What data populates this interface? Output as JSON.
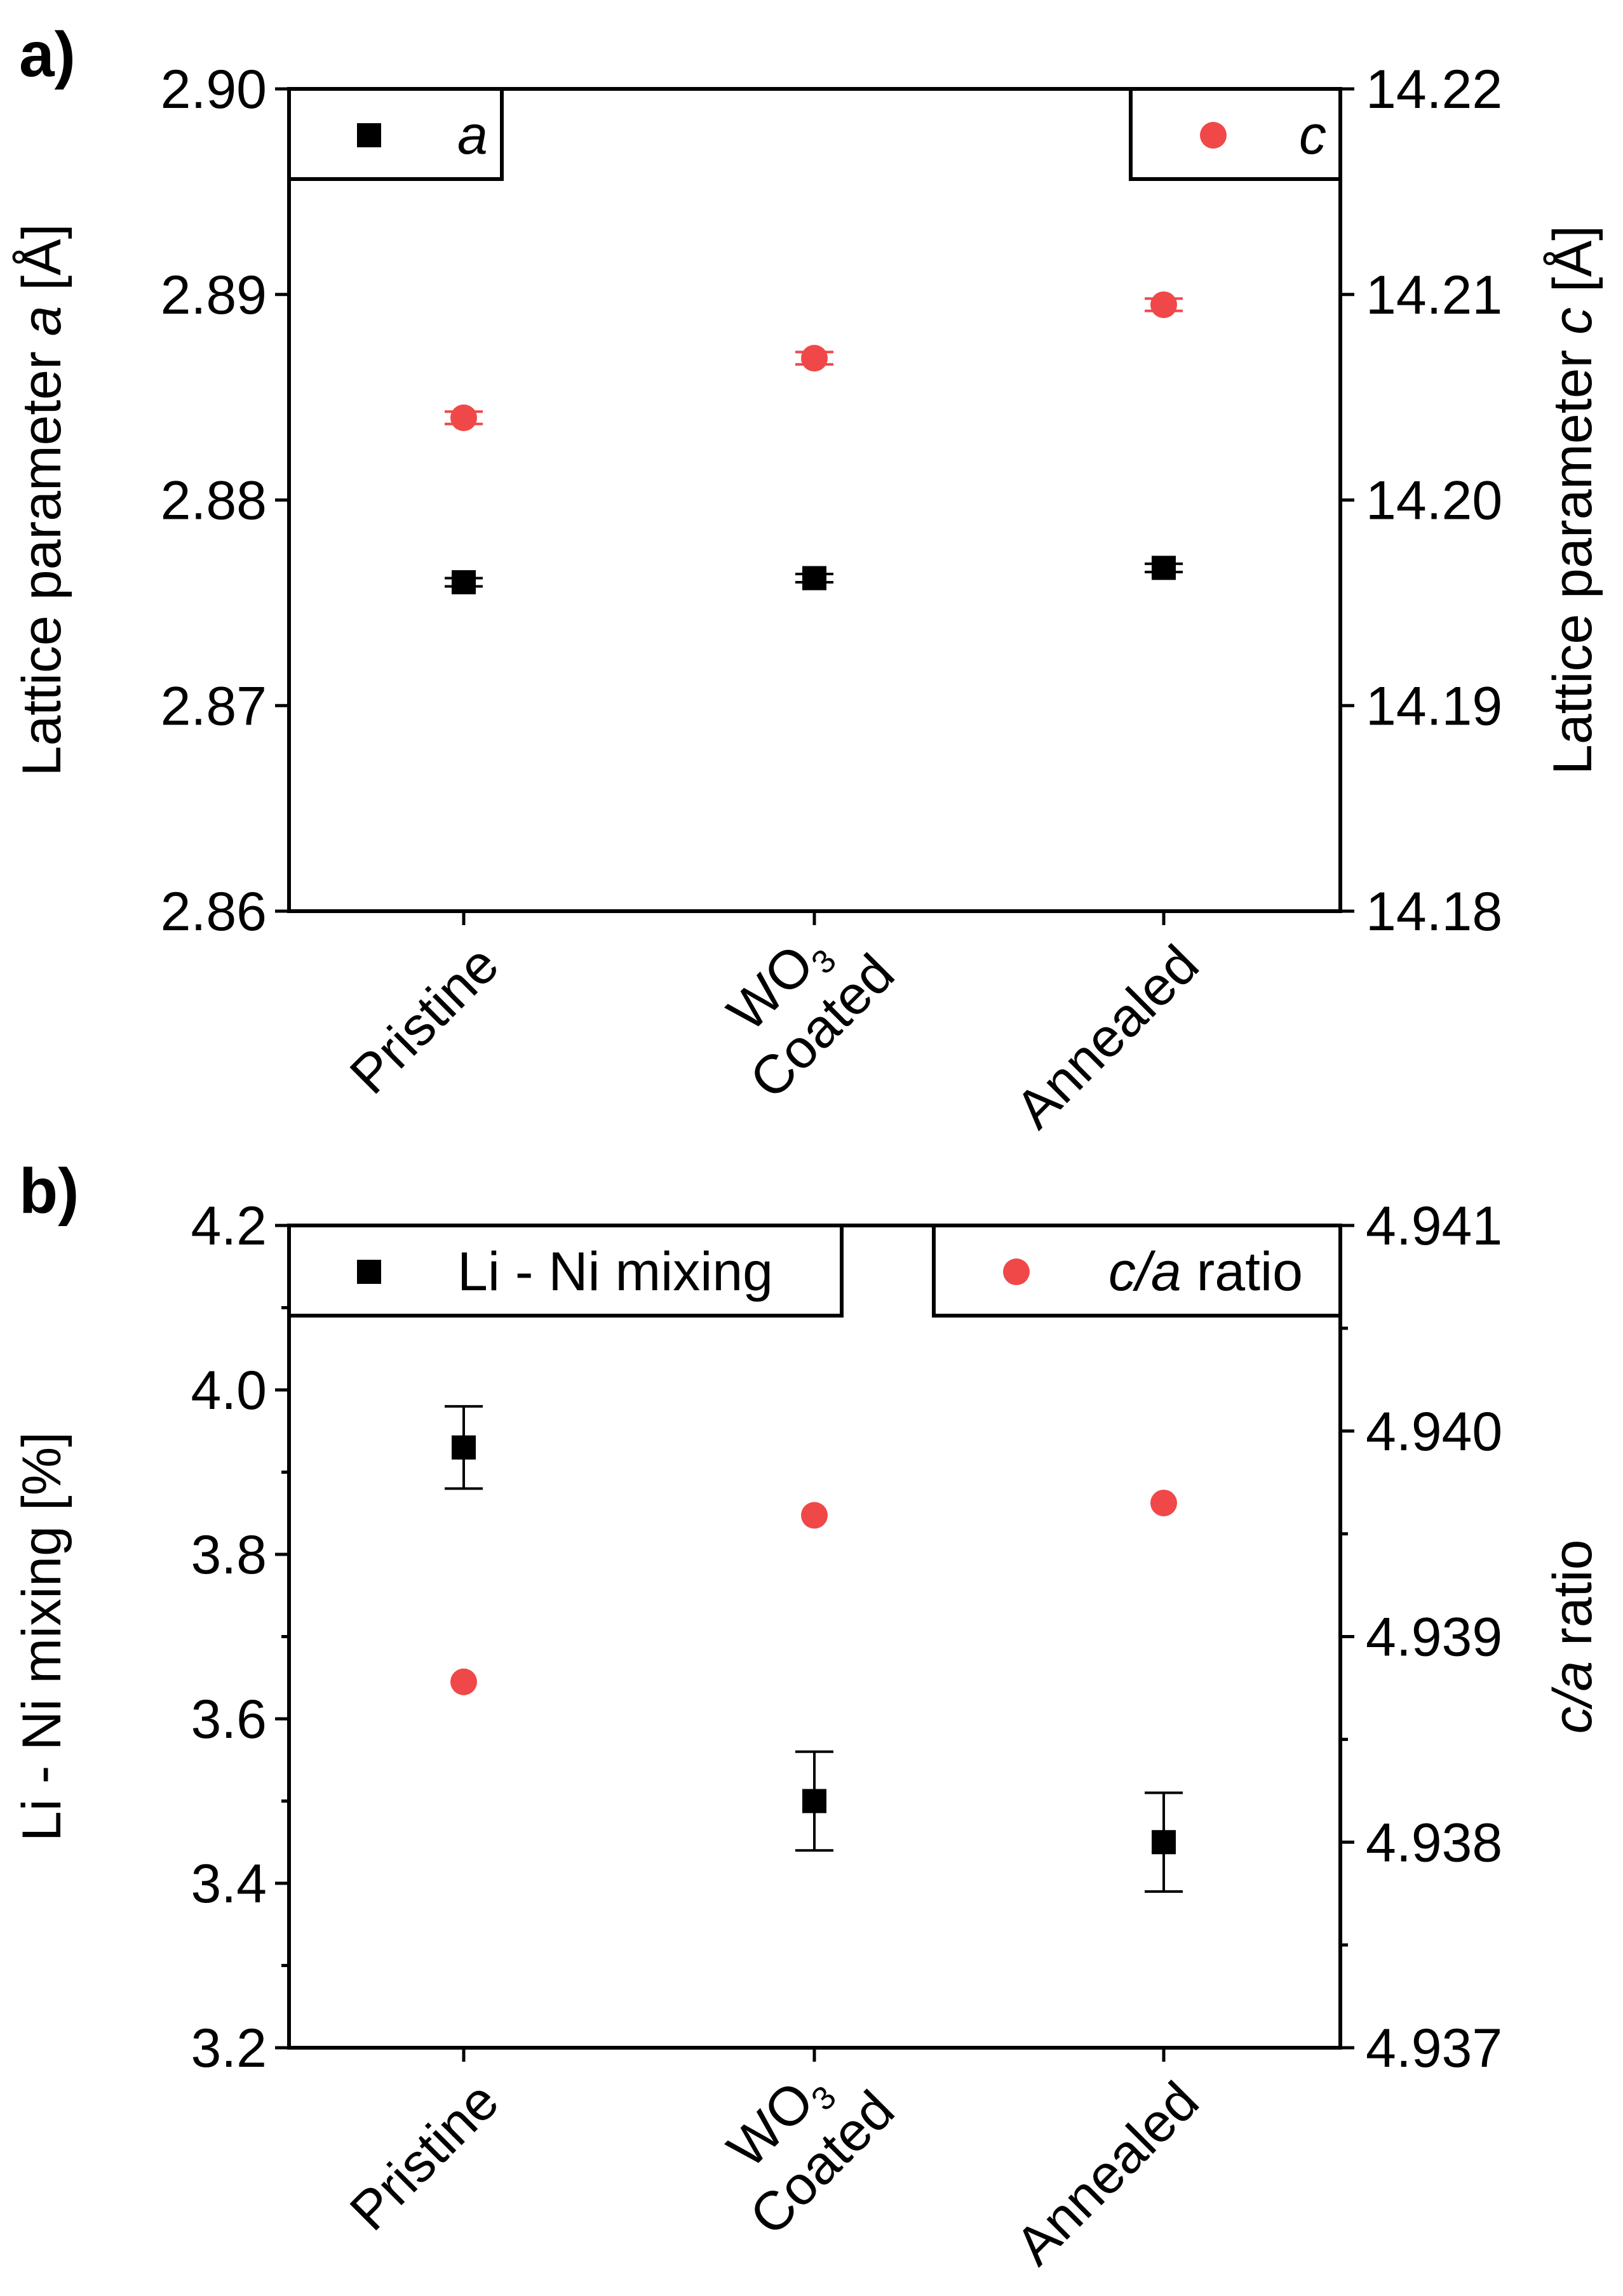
{
  "colors": {
    "series_a": "#000000",
    "series_c": "#f04848"
  },
  "chart_data": [
    {
      "panel": "a)",
      "type": "scatter",
      "categories": [
        "Pristine",
        "WO3 Coated",
        "Annealed"
      ],
      "category_lines": [
        [
          "Pristine"
        ],
        [
          "WO",
          "3",
          "Coated"
        ],
        [
          "Annealed"
        ]
      ],
      "left_axis": {
        "label_pre": "Lattice parameter ",
        "label_italic": "a",
        "label_post": "  [Å]",
        "range": [
          2.86,
          2.9
        ],
        "ticks": [
          "2.86",
          "2.87",
          "2.88",
          "2.89",
          "2.90"
        ]
      },
      "right_axis": {
        "label_pre": "Lattice parameter ",
        "label_italic": "c",
        "label_post": "  [Å]",
        "range": [
          14.18,
          14.22
        ],
        "ticks": [
          "14.18",
          "14.19",
          "14.20",
          "14.21",
          "14.22"
        ]
      },
      "series": [
        {
          "name": "a",
          "italic": true,
          "axis": "left",
          "marker": "square",
          "color": "#000000",
          "values": [
            2.876,
            2.8762,
            2.8767
          ],
          "errors": [
            0.0002,
            0.0002,
            0.0002
          ]
        },
        {
          "name": "c",
          "italic": true,
          "axis": "right",
          "marker": "circle",
          "color": "#f04848",
          "values": [
            14.204,
            14.2069,
            14.2095
          ],
          "errors": [
            0.0003,
            0.0003,
            0.0003
          ]
        }
      ],
      "legend": [
        "top-left",
        "top-right"
      ]
    },
    {
      "panel": "b)",
      "type": "scatter",
      "categories": [
        "Pristine",
        "WO3 Coated",
        "Annealed"
      ],
      "category_lines": [
        [
          "Pristine"
        ],
        [
          "WO",
          "3",
          "Coated"
        ],
        [
          "Annealed"
        ]
      ],
      "left_axis": {
        "label_pre": "Li - Ni mixing  [%]",
        "label_italic": "",
        "label_post": "",
        "range": [
          3.2,
          4.2
        ],
        "ticks": [
          "3.2",
          "3.4",
          "3.6",
          "3.8",
          "4.0",
          "4.2"
        ]
      },
      "right_axis": {
        "label_pre": "",
        "label_italic": "c/a",
        "label_post": " ratio",
        "range": [
          4.937,
          4.941
        ],
        "ticks": [
          "4.937",
          "4.938",
          "4.939",
          "4.940",
          "4.941"
        ]
      },
      "series": [
        {
          "name": "Li - Ni mixing",
          "italic": false,
          "axis": "left",
          "marker": "square",
          "color": "#000000",
          "values": [
            3.93,
            3.5,
            3.45
          ],
          "errors": [
            0.05,
            0.06,
            0.06
          ]
        },
        {
          "name_italic": "c/a",
          "name": " ratio",
          "axis": "right",
          "marker": "circle",
          "color": "#f04848",
          "values": [
            4.93878,
            4.93959,
            4.93965
          ],
          "errors": [
            0,
            0,
            0
          ]
        }
      ],
      "legend": [
        "top-left",
        "top-right"
      ]
    }
  ]
}
